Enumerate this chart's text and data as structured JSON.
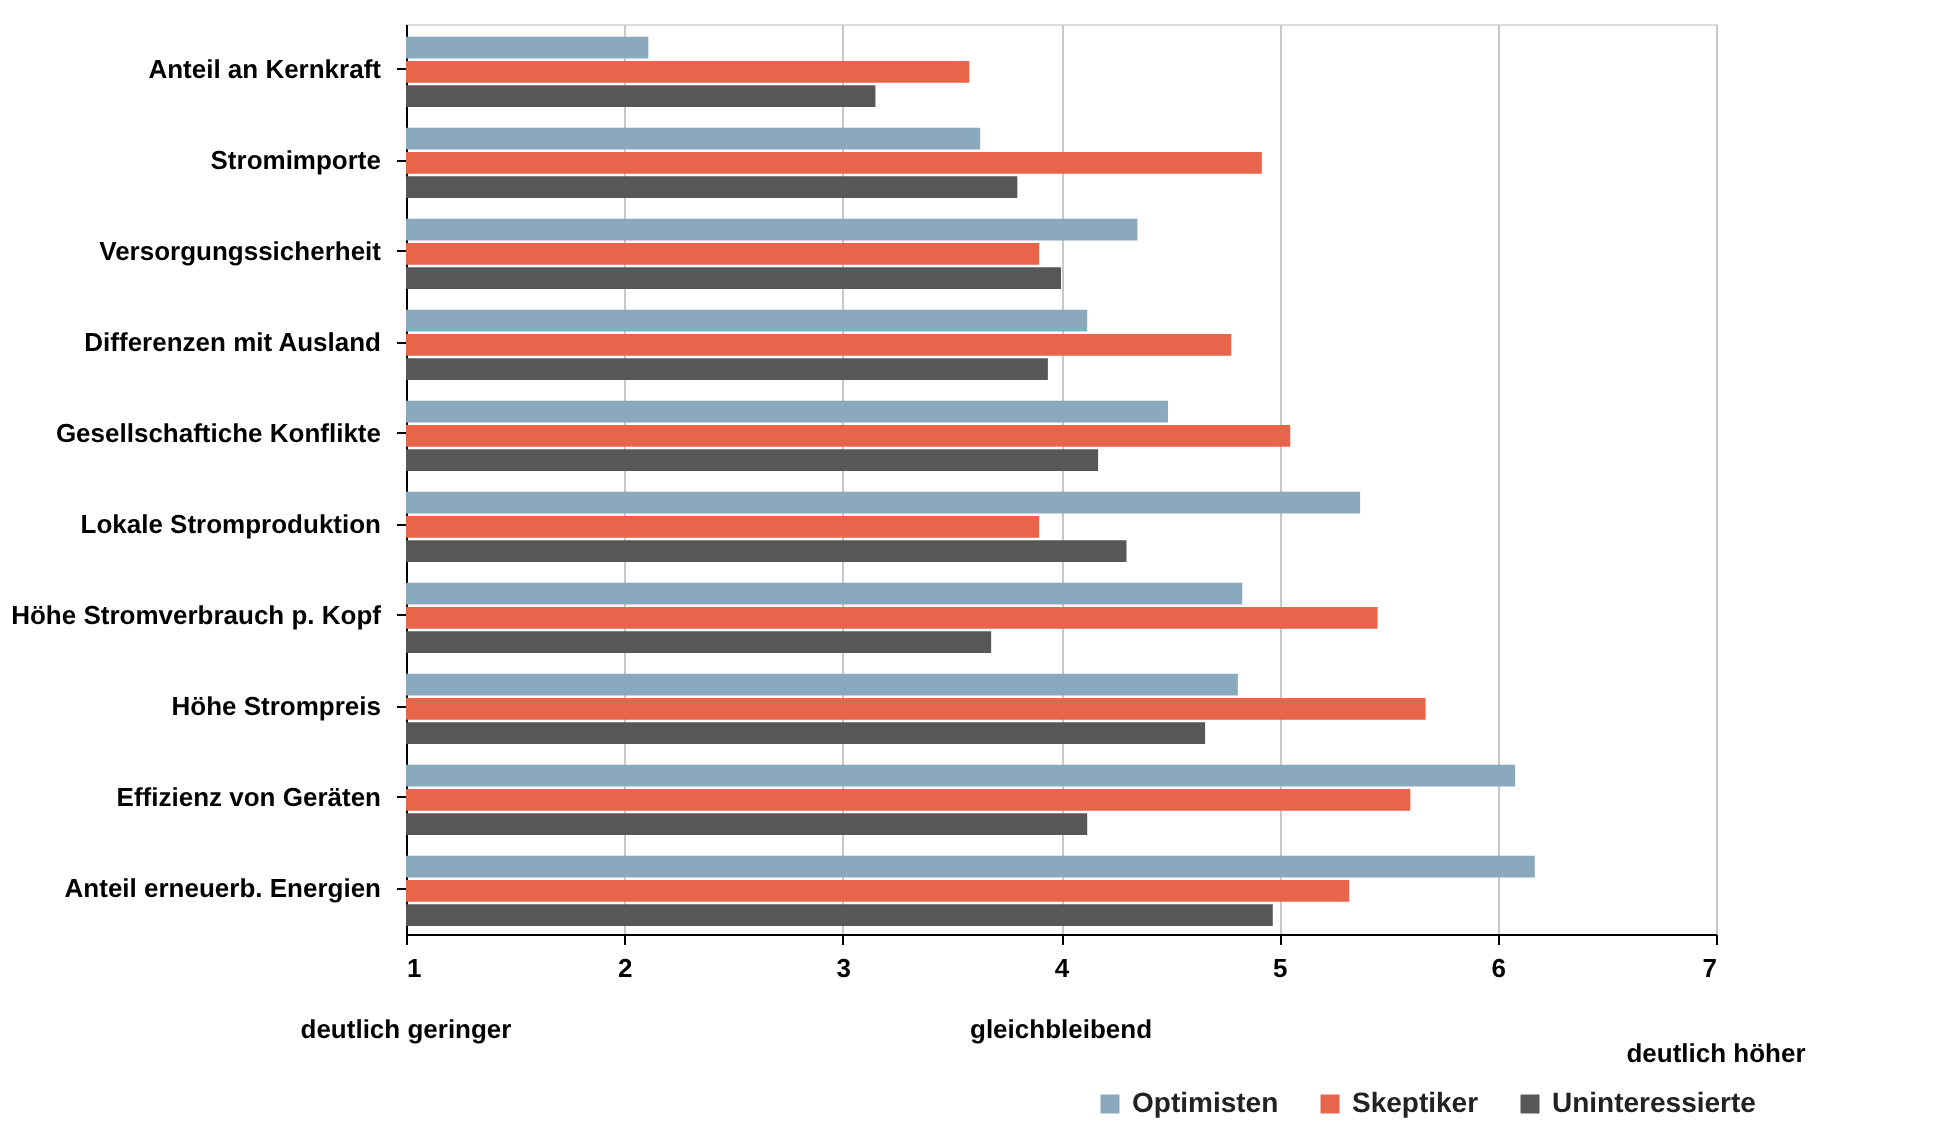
{
  "chart_data": {
    "type": "bar",
    "orientation": "horizontal",
    "categories": [
      "Anteil an Kernkraft",
      "Stromimporte",
      "Versorgungssicherheit",
      "Differenzen mit Ausland",
      "Gesellschaftiche Konflikte",
      "Lokale Stromproduktion",
      "Höhe Stromverbrauch p. Kopf",
      "Höhe Strompreis",
      "Effizienz von Geräten",
      "Anteil erneuerb. Energien"
    ],
    "series": [
      {
        "name": "Optimisten",
        "color": "#8ba9bd",
        "values": [
          2.11,
          3.63,
          4.35,
          4.12,
          4.49,
          5.37,
          4.83,
          4.81,
          6.08,
          6.17
        ]
      },
      {
        "name": "Skeptiker",
        "color": "#e8644a",
        "values": [
          3.58,
          4.92,
          3.9,
          4.78,
          5.05,
          3.9,
          5.45,
          5.67,
          5.6,
          5.32
        ]
      },
      {
        "name": "Uninteressierte",
        "color": "#575757",
        "values": [
          3.15,
          3.8,
          4.0,
          3.94,
          4.17,
          4.3,
          3.68,
          4.66,
          4.12,
          4.97
        ]
      }
    ],
    "xlim": [
      1,
      7
    ],
    "xticks": [
      1,
      2,
      3,
      4,
      5,
      6,
      7
    ],
    "grid": "x",
    "legend": "bottom right",
    "annotations": [
      "deutlich geringer",
      "gleichbleibend",
      "deutlich höher"
    ]
  }
}
